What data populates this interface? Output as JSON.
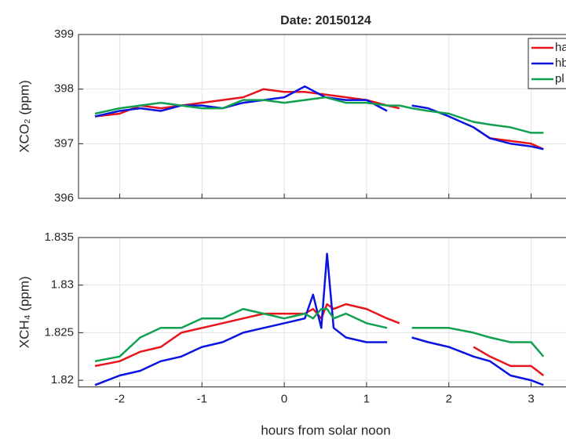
{
  "chart_data": [
    {
      "type": "line",
      "title": "Date: 20150124",
      "ylabel": "XCO₂ (ppm)",
      "x": [
        -2.3,
        -2.0,
        -1.75,
        -1.5,
        -1.25,
        -1.0,
        -0.75,
        -0.5,
        -0.25,
        0,
        0.25,
        0.5,
        0.75,
        1.0,
        1.25,
        1.4,
        1.55,
        1.75,
        2.0,
        2.3,
        2.5,
        2.75,
        3.0,
        3.15
      ],
      "series": [
        {
          "name": "ha",
          "color": "#e8141b",
          "values": [
            397.5,
            397.55,
            397.7,
            397.65,
            397.7,
            397.75,
            397.8,
            397.85,
            398.0,
            397.95,
            397.95,
            397.9,
            397.85,
            397.8,
            397.7,
            397.65,
            null,
            null,
            null,
            397.3,
            397.1,
            397.05,
            397.0,
            396.9
          ]
        },
        {
          "name": "hb",
          "color": "#0a14e0",
          "values": [
            397.5,
            397.6,
            397.65,
            397.6,
            397.7,
            397.7,
            397.65,
            397.75,
            397.8,
            397.85,
            398.05,
            397.85,
            397.8,
            397.8,
            397.6,
            null,
            397.7,
            397.65,
            397.5,
            397.3,
            397.1,
            397.0,
            396.95,
            396.9
          ]
        },
        {
          "name": "pl",
          "color": "#10a050",
          "values": [
            397.55,
            397.65,
            397.7,
            397.75,
            397.7,
            397.65,
            397.65,
            397.8,
            397.8,
            397.75,
            397.8,
            397.85,
            397.75,
            397.75,
            397.7,
            397.7,
            397.65,
            397.6,
            397.55,
            397.4,
            397.35,
            397.3,
            397.2,
            397.2
          ]
        }
      ],
      "xlim": [
        -2.5,
        3.5
      ],
      "xticks": [
        -2,
        -1,
        0,
        1,
        2,
        3
      ],
      "show_xtick_labels": false,
      "ylim": [
        396,
        399
      ],
      "yticks": [
        396,
        397,
        398,
        399
      ],
      "grid": true,
      "legend": "upper right"
    },
    {
      "type": "line",
      "ylabel": "XCH₄ (ppm)",
      "xlabel": "hours from solar noon",
      "x": [
        -2.3,
        -2.0,
        -1.75,
        -1.5,
        -1.25,
        -1.0,
        -0.75,
        -0.5,
        -0.25,
        0,
        0.25,
        0.35,
        0.45,
        0.52,
        0.6,
        0.75,
        1.0,
        1.25,
        1.4,
        1.55,
        1.75,
        2.0,
        2.3,
        2.5,
        2.75,
        3.0,
        3.15
      ],
      "series": [
        {
          "name": "ha",
          "color": "#e8141b",
          "values": [
            1.8215,
            1.822,
            1.823,
            1.8235,
            1.825,
            1.8255,
            1.826,
            1.8265,
            1.827,
            1.827,
            1.827,
            1.8275,
            1.8265,
            1.828,
            1.8275,
            1.828,
            1.8275,
            1.8265,
            1.826,
            null,
            null,
            null,
            1.8235,
            1.8225,
            1.8215,
            1.8215,
            1.8205
          ]
        },
        {
          "name": "hb",
          "color": "#0a14e0",
          "values": [
            1.8195,
            1.8205,
            1.821,
            1.822,
            1.8225,
            1.8235,
            1.824,
            1.825,
            1.8255,
            1.826,
            1.8265,
            1.829,
            1.8255,
            1.8333,
            1.8255,
            1.8245,
            1.824,
            1.824,
            null,
            1.8245,
            1.824,
            1.8235,
            1.8225,
            1.822,
            1.8205,
            1.82,
            1.8195
          ]
        },
        {
          "name": "pl",
          "color": "#10a050",
          "values": [
            1.822,
            1.8225,
            1.8245,
            1.8255,
            1.8255,
            1.8265,
            1.8265,
            1.8275,
            1.827,
            1.8265,
            1.827,
            1.8265,
            1.8275,
            1.8275,
            1.8265,
            1.827,
            1.826,
            1.8255,
            null,
            1.8255,
            1.8255,
            1.8255,
            1.825,
            1.8245,
            1.824,
            1.824,
            1.8225
          ]
        }
      ],
      "xlim": [
        -2.5,
        3.5
      ],
      "xticks": [
        -2,
        -1,
        0,
        1,
        2,
        3
      ],
      "show_xtick_labels": true,
      "ylim": [
        1.8193,
        1.835
      ],
      "yticks": [
        1.82,
        1.825,
        1.83,
        1.835
      ],
      "grid": true
    }
  ]
}
